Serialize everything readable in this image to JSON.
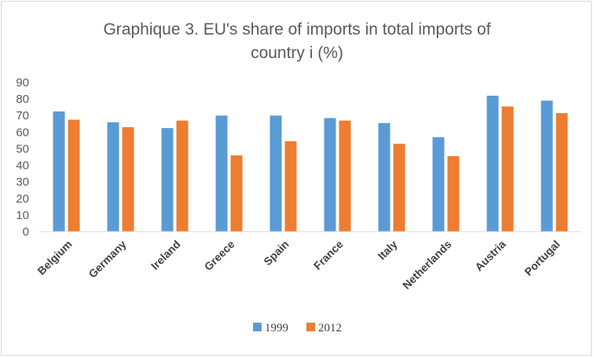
{
  "chart_data": {
    "type": "bar",
    "title_lines": [
      "Graphique 3. EU's share of imports in total imports of",
      "country i (%)"
    ],
    "categories": [
      "Belgium",
      "Germany",
      "Ireland",
      "Greece",
      "Spain",
      "France",
      "Italy",
      "Netherlands",
      "Austria",
      "Portugal"
    ],
    "series": [
      {
        "name": "1999",
        "color": "#5b9bd5",
        "values": [
          72.5,
          66,
          62.5,
          70,
          70,
          68.5,
          65.5,
          57,
          82,
          79
        ]
      },
      {
        "name": "2012",
        "color": "#ed7d31",
        "values": [
          67.5,
          63,
          67,
          46,
          54.5,
          67,
          53,
          45.5,
          75.5,
          71.5
        ]
      }
    ],
    "y_ticks": [
      "0",
      "10",
      "20",
      "30",
      "40",
      "50",
      "60",
      "70",
      "80",
      "90"
    ],
    "ylim": [
      0,
      90
    ],
    "grid": false,
    "legend_position": "bottom"
  }
}
